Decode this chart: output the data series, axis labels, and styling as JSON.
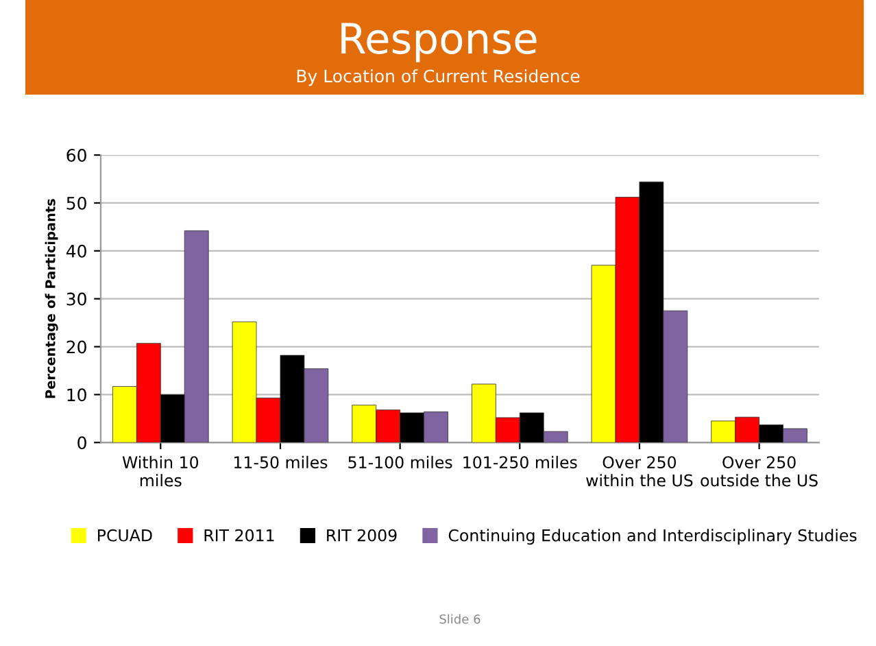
{
  "chart_data": {
    "type": "bar",
    "title": "Response",
    "subtitle": "By Location of Current Residence",
    "ylabel": "Percentage of Participants",
    "categories": [
      "Within 10\nmiles",
      "11-50 miles",
      "51-100 miles",
      "101-250 miles",
      "Over 250\nwithin the US",
      "Over 250\noutside the US"
    ],
    "series": [
      {
        "name": "PCUAD",
        "color": "#ffff00",
        "values": [
          11.7,
          25.2,
          7.8,
          12.2,
          37.0,
          4.5
        ]
      },
      {
        "name": "RIT 2011",
        "color": "#ff0000",
        "values": [
          20.7,
          9.3,
          6.8,
          5.2,
          51.2,
          5.3
        ]
      },
      {
        "name": "RIT 2009",
        "color": "#000000",
        "values": [
          10.0,
          18.2,
          6.2,
          6.2,
          54.4,
          3.7
        ]
      },
      {
        "name": "Continuing Education and Interdisciplinary Studies",
        "color": "#8064a2",
        "values": [
          44.2,
          15.4,
          6.4,
          2.3,
          27.5,
          2.9
        ]
      }
    ],
    "ylim": [
      0,
      60
    ],
    "yticks": [
      0,
      10,
      20,
      30,
      40,
      50,
      60
    ],
    "grid": "y",
    "legend": "bottom",
    "annotations": [
      "Slide 6"
    ]
  }
}
